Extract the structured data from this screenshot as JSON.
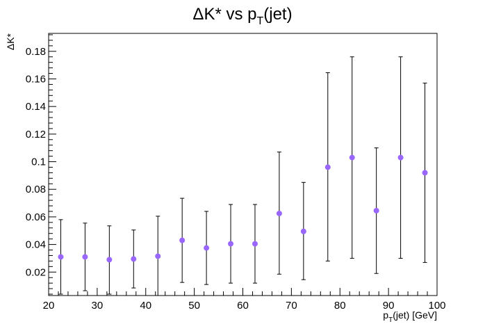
{
  "chart_data": {
    "type": "scatter",
    "title_main": "ΔK* vs p",
    "title_sub": "T",
    "title_tail": "(jet)",
    "xlabel_pre": "p",
    "xlabel_sub": "T",
    "xlabel_post": "(jet) [GeV]",
    "ylabel": "ΔK*",
    "xlim": [
      20,
      100
    ],
    "ylim": [
      0.003,
      0.193
    ],
    "x_ticks": [
      20,
      30,
      40,
      50,
      60,
      70,
      80,
      90,
      100
    ],
    "x_tick_labels": [
      "20",
      "30",
      "40",
      "50",
      "60",
      "70",
      "80",
      "90",
      "100"
    ],
    "y_ticks": [
      0.02,
      0.04,
      0.06,
      0.08,
      0.1,
      0.12,
      0.14,
      0.16,
      0.18
    ],
    "y_tick_labels": [
      "0.02",
      "0.04",
      "0.06",
      "0.08",
      "0.1",
      "0.12",
      "0.14",
      "0.16",
      "0.18"
    ],
    "marker_color": "#9966ff",
    "points": [
      {
        "x": 22.5,
        "y": 0.031,
        "ylo": 0.004,
        "yhi": 0.058
      },
      {
        "x": 27.5,
        "y": 0.031,
        "ylo": 0.0065,
        "yhi": 0.0555
      },
      {
        "x": 32.5,
        "y": 0.029,
        "ylo": 0.004,
        "yhi": 0.0535
      },
      {
        "x": 37.5,
        "y": 0.0295,
        "ylo": 0.0085,
        "yhi": 0.0505
      },
      {
        "x": 42.5,
        "y": 0.0315,
        "ylo": 0.003,
        "yhi": 0.0605
      },
      {
        "x": 47.5,
        "y": 0.043,
        "ylo": 0.0125,
        "yhi": 0.0735
      },
      {
        "x": 52.5,
        "y": 0.0375,
        "ylo": 0.011,
        "yhi": 0.064
      },
      {
        "x": 57.5,
        "y": 0.0405,
        "ylo": 0.012,
        "yhi": 0.069
      },
      {
        "x": 62.5,
        "y": 0.0405,
        "ylo": 0.012,
        "yhi": 0.069
      },
      {
        "x": 67.5,
        "y": 0.0625,
        "ylo": 0.0185,
        "yhi": 0.107
      },
      {
        "x": 72.5,
        "y": 0.0495,
        "ylo": 0.0145,
        "yhi": 0.085
      },
      {
        "x": 77.5,
        "y": 0.096,
        "ylo": 0.028,
        "yhi": 0.1645
      },
      {
        "x": 82.5,
        "y": 0.103,
        "ylo": 0.03,
        "yhi": 0.176
      },
      {
        "x": 87.5,
        "y": 0.0645,
        "ylo": 0.019,
        "yhi": 0.11
      },
      {
        "x": 92.5,
        "y": 0.103,
        "ylo": 0.03,
        "yhi": 0.176
      },
      {
        "x": 97.5,
        "y": 0.092,
        "ylo": 0.027,
        "yhi": 0.157
      }
    ]
  }
}
